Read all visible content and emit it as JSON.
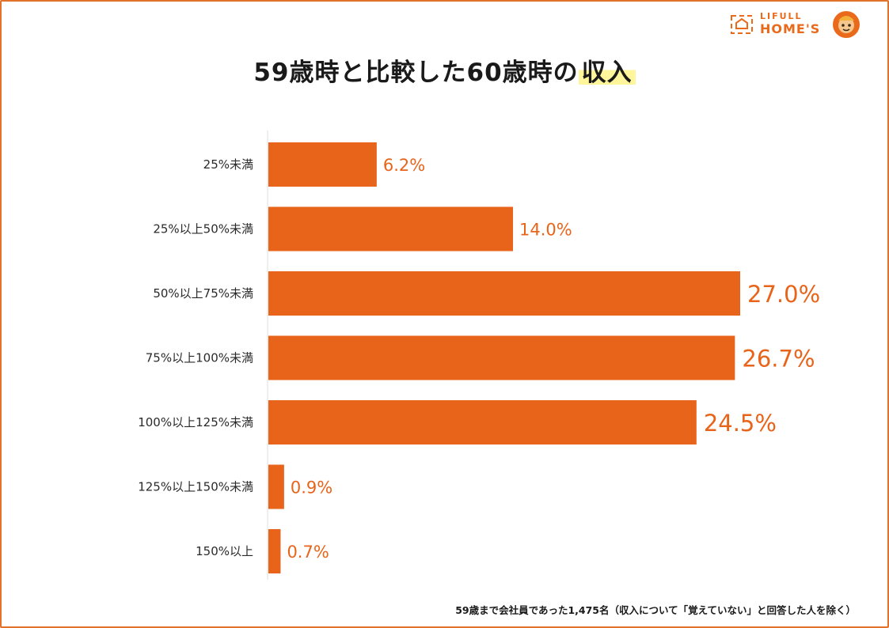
{
  "brand": {
    "name_top": "LIFULL",
    "name_bottom": "HOME'S",
    "accent": "#e8641a"
  },
  "chart_data": {
    "type": "bar",
    "orientation": "horizontal",
    "title_main": "59歳時と比較した60歳時の",
    "title_highlight": "収入",
    "categories": [
      "25%未満",
      "25%以上50%未満",
      "50%以上75%未満",
      "75%以上100%未満",
      "100%以上125%未満",
      "125%以上150%未満",
      "150%以上"
    ],
    "values": [
      6.2,
      14.0,
      27.0,
      26.7,
      24.5,
      0.9,
      0.7
    ],
    "value_labels": [
      "6.2%",
      "14.0%",
      "27.0%",
      "26.7%",
      "24.5%",
      "0.9%",
      "0.7%"
    ],
    "unit": "%",
    "xlim": [
      0,
      30
    ],
    "bar_color": "#e8641a",
    "grid": false
  },
  "footnote": "59歳まで会社員であった1,475名（収入について「覚えていない」と回答した人を除く）"
}
